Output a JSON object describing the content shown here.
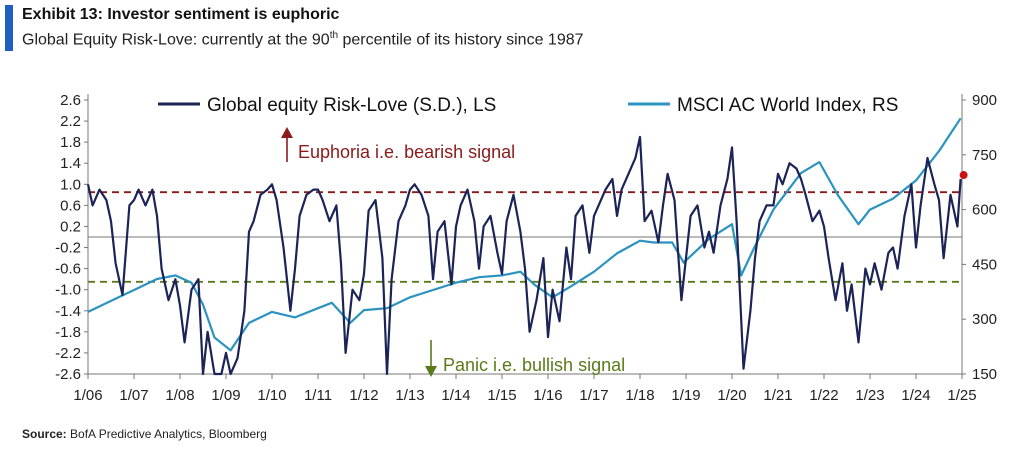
{
  "header": {
    "title": "Exhibit 13: Investor sentiment is euphoric",
    "subtitle_pre": "Global Equity Risk-Love: currently at the 90",
    "subtitle_sup": "th",
    "subtitle_post": " percentile of its history since 1987"
  },
  "source": {
    "label": "Source:",
    "text": " BofA Predictive Analytics, Bloomberg"
  },
  "colors": {
    "risk_love": "#1b2357",
    "msci": "#2a93c0",
    "euphoria_line": "#8b1a1a",
    "panic_line": "#5a7a1a",
    "zero_line": "#bbbbbb",
    "current_dot": "#cc1111"
  },
  "chart_data": {
    "type": "line",
    "x_tick_labels": [
      "1/06",
      "1/07",
      "1/08",
      "1/09",
      "1/10",
      "1/11",
      "1/12",
      "1/13",
      "1/14",
      "1/15",
      "1/16",
      "1/17",
      "1/18",
      "1/19",
      "1/20",
      "1/21",
      "1/22",
      "1/23",
      "1/24",
      "1/25"
    ],
    "y_left": {
      "ticks": [
        "2.6",
        "2.2",
        "1.8",
        "1.4",
        "1.0",
        "0.6",
        "0.2",
        "-0.2",
        "-0.6",
        "-1.0",
        "-1.4",
        "-1.8",
        "-2.2",
        "-2.6"
      ],
      "range": [
        -2.6,
        2.6
      ]
    },
    "y_right": {
      "ticks": [
        "900",
        "750",
        "600",
        "450",
        "300",
        "150"
      ],
      "range": [
        150,
        900
      ]
    },
    "reference_lines": {
      "euphoria": 0.85,
      "panic": -0.85
    },
    "annotations": {
      "euphoria": "Euphoria  i.e. bearish signal",
      "panic": "Panic i.e. bullish signal"
    },
    "series": [
      {
        "name": "Global equity Risk-Love (S.D.), LS",
        "axis": "left",
        "x": [
          2006.0,
          2006.1,
          2006.25,
          2006.4,
          2006.5,
          2006.6,
          2006.75,
          2006.9,
          2007.0,
          2007.1,
          2007.25,
          2007.4,
          2007.5,
          2007.6,
          2007.75,
          2007.9,
          2008.0,
          2008.1,
          2008.25,
          2008.4,
          2008.5,
          2008.6,
          2008.75,
          2008.9,
          2009.0,
          2009.1,
          2009.25,
          2009.4,
          2009.5,
          2009.6,
          2009.75,
          2009.9,
          2010.0,
          2010.1,
          2010.25,
          2010.4,
          2010.5,
          2010.6,
          2010.75,
          2010.9,
          2011.0,
          2011.1,
          2011.25,
          2011.4,
          2011.5,
          2011.6,
          2011.75,
          2011.9,
          2012.0,
          2012.1,
          2012.25,
          2012.4,
          2012.5,
          2012.6,
          2012.75,
          2012.9,
          2013.0,
          2013.1,
          2013.25,
          2013.4,
          2013.5,
          2013.6,
          2013.75,
          2013.9,
          2014.0,
          2014.1,
          2014.25,
          2014.4,
          2014.5,
          2014.6,
          2014.75,
          2014.9,
          2015.0,
          2015.1,
          2015.25,
          2015.4,
          2015.5,
          2015.6,
          2015.75,
          2015.9,
          2016.0,
          2016.1,
          2016.25,
          2016.4,
          2016.5,
          2016.6,
          2016.75,
          2016.9,
          2017.0,
          2017.1,
          2017.25,
          2017.4,
          2017.5,
          2017.6,
          2017.75,
          2017.9,
          2018.0,
          2018.1,
          2018.25,
          2018.4,
          2018.5,
          2018.6,
          2018.75,
          2018.9,
          2019.0,
          2019.1,
          2019.25,
          2019.4,
          2019.5,
          2019.6,
          2019.75,
          2019.9,
          2020.0,
          2020.1,
          2020.25,
          2020.4,
          2020.5,
          2020.6,
          2020.75,
          2020.9,
          2021.0,
          2021.1,
          2021.25,
          2021.4,
          2021.5,
          2021.6,
          2021.75,
          2021.9,
          2022.0,
          2022.1,
          2022.25,
          2022.4,
          2022.5,
          2022.6,
          2022.75,
          2022.9,
          2023.0,
          2023.1,
          2023.25,
          2023.4,
          2023.5,
          2023.6,
          2023.75,
          2023.9,
          2024.0,
          2024.1,
          2024.25,
          2024.4,
          2024.5,
          2024.6,
          2024.75,
          2024.9,
          2024.97
        ],
        "y": [
          1.0,
          0.6,
          0.9,
          0.7,
          0.3,
          -0.5,
          -1.1,
          0.6,
          0.7,
          0.9,
          0.6,
          0.9,
          0.4,
          -0.6,
          -1.2,
          -0.8,
          -1.3,
          -2.0,
          -1.0,
          -0.8,
          -2.6,
          -1.8,
          -2.6,
          -2.6,
          -2.2,
          -2.6,
          -2.3,
          -1.4,
          0.1,
          0.3,
          0.8,
          0.9,
          1.0,
          0.7,
          -0.2,
          -1.4,
          -0.6,
          0.4,
          0.8,
          0.9,
          0.9,
          0.7,
          0.3,
          0.6,
          -0.5,
          -2.2,
          -1.0,
          -1.2,
          -0.7,
          0.5,
          0.7,
          -0.4,
          -2.6,
          -0.8,
          0.3,
          0.6,
          0.9,
          1.0,
          0.8,
          0.4,
          -0.8,
          0.1,
          0.3,
          -0.9,
          0.2,
          0.6,
          0.9,
          0.3,
          -0.6,
          0.2,
          0.4,
          -0.3,
          -0.7,
          0.3,
          0.8,
          0.1,
          -0.6,
          -1.8,
          -1.2,
          -0.4,
          -1.9,
          -1.0,
          -1.6,
          -0.2,
          -0.8,
          0.4,
          0.6,
          -0.3,
          0.4,
          0.6,
          0.9,
          1.1,
          0.4,
          0.9,
          1.2,
          1.5,
          1.9,
          0.3,
          0.5,
          -0.1,
          0.6,
          1.2,
          0.7,
          -1.2,
          -0.4,
          0.4,
          0.6,
          -0.2,
          0.1,
          -0.3,
          0.6,
          1.1,
          1.7,
          0.3,
          -2.5,
          -1.4,
          -0.4,
          0.3,
          0.6,
          0.6,
          1.2,
          1.0,
          1.4,
          1.3,
          1.1,
          0.8,
          0.3,
          0.5,
          0.2,
          -0.4,
          -1.2,
          -0.5,
          -1.4,
          -0.9,
          -2.0,
          -0.6,
          -0.9,
          -0.5,
          -1.0,
          -0.3,
          -0.2,
          -0.6,
          0.4,
          1.0,
          -0.2,
          0.6,
          1.5,
          1.0,
          0.7,
          -0.4,
          0.8,
          0.2,
          1.1
        ]
      },
      {
        "name": "MSCI AC World Index, RS",
        "axis": "right",
        "x": [
          2006.0,
          2006.5,
          2007.0,
          2007.5,
          2007.9,
          2008.25,
          2008.5,
          2008.75,
          2009.1,
          2009.5,
          2010.0,
          2010.5,
          2011.0,
          2011.3,
          2011.7,
          2012.0,
          2012.5,
          2013.0,
          2013.5,
          2014.0,
          2014.5,
          2015.0,
          2015.4,
          2015.7,
          2016.1,
          2016.5,
          2017.0,
          2017.5,
          2018.0,
          2018.3,
          2018.7,
          2018.95,
          2019.5,
          2020.0,
          2020.2,
          2020.5,
          2020.9,
          2021.5,
          2021.9,
          2022.3,
          2022.75,
          2023.0,
          2023.5,
          2024.0,
          2024.5,
          2024.97
        ],
        "y": [
          320,
          350,
          380,
          410,
          420,
          400,
          340,
          250,
          215,
          290,
          320,
          305,
          330,
          345,
          290,
          325,
          330,
          360,
          380,
          400,
          415,
          420,
          430,
          395,
          360,
          390,
          430,
          480,
          515,
          510,
          510,
          455,
          520,
          560,
          420,
          500,
          600,
          700,
          730,
          640,
          560,
          600,
          630,
          680,
          760,
          850
        ]
      }
    ],
    "current_point": {
      "x": 2024.97,
      "y": 1.1
    },
    "legend_position": "top",
    "grid": false
  }
}
